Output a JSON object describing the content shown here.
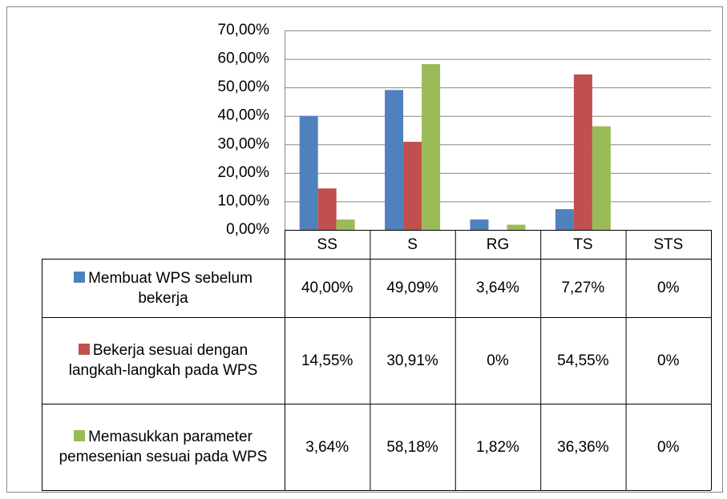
{
  "chart_data": {
    "type": "bar",
    "categories": [
      "SS",
      "S",
      "RG",
      "TS",
      "STS"
    ],
    "series": [
      {
        "name": "Membuat WPS sebelum bekerja",
        "color": "#4f81bd",
        "values": [
          40,
          49.09,
          3.64,
          7.27,
          0
        ],
        "value_labels": [
          "40,00%",
          "49,09%",
          "3,64%",
          "7,27%",
          "0%"
        ]
      },
      {
        "name": "Bekerja sesuai dengan langkah-langkah pada WPS",
        "color": "#c0504d",
        "values": [
          14.55,
          30.91,
          0,
          54.55,
          0
        ],
        "value_labels": [
          "14,55%",
          "30,91%",
          "0%",
          "54,55%",
          "0%"
        ]
      },
      {
        "name": "Memasukkan parameter pemesenian sesuai pada WPS",
        "color": "#9bbb59",
        "values": [
          3.64,
          58.18,
          1.82,
          36.36,
          0
        ],
        "value_labels": [
          "3,64%",
          "58,18%",
          "1,82%",
          "36,36%",
          "0%"
        ]
      }
    ],
    "ylim": [
      0,
      70
    ],
    "yticks": [
      {
        "value": 0,
        "label": "0,00%"
      },
      {
        "value": 10,
        "label": "10,00%"
      },
      {
        "value": 20,
        "label": "20,00%"
      },
      {
        "value": 30,
        "label": "30,00%"
      },
      {
        "value": 40,
        "label": "40,00%"
      },
      {
        "value": 50,
        "label": "50,00%"
      },
      {
        "value": 60,
        "label": "60,00%"
      },
      {
        "value": 70,
        "label": "70,00%"
      }
    ],
    "grid": true
  }
}
